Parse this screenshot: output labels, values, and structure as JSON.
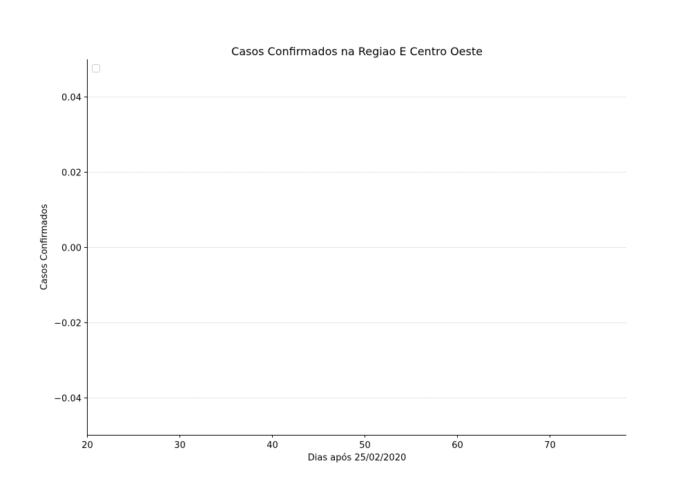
{
  "chart_data": {
    "type": "line",
    "title": "Casos Confirmados na Regiao E Centro Oeste",
    "xlabel": "Dias após 25/02/2020",
    "ylabel": "Casos Confirmados",
    "xlim": [
      20,
      78.3
    ],
    "ylim": [
      -0.05,
      0.05
    ],
    "x_ticks": [
      20,
      30,
      40,
      50,
      60,
      70
    ],
    "x_tick_labels": [
      "20",
      "30",
      "40",
      "50",
      "60",
      "70"
    ],
    "y_ticks": [
      -0.04,
      -0.02,
      0.0,
      0.02,
      0.04
    ],
    "y_tick_labels": [
      "−0.04",
      "−0.02",
      "0.00",
      "0.02",
      "0.04"
    ],
    "grid": "horizontal",
    "legend": "top-left",
    "series": []
  },
  "colors": {
    "axis": "#000000",
    "grid": "#cccccc",
    "legend_border": "#cccccc"
  }
}
